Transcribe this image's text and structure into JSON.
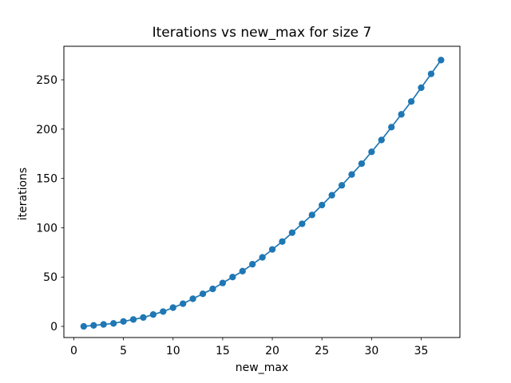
{
  "figure": {
    "background": "#ffffff",
    "axes_color": "#000000"
  },
  "chart_data": {
    "type": "line",
    "title": "Iterations vs new_max for size 7",
    "xlabel": "new_max",
    "ylabel": "iterations",
    "series": [
      {
        "name": "iterations",
        "marker": "circle",
        "color": "#1f77b4",
        "x": [
          1,
          2,
          3,
          4,
          5,
          6,
          7,
          8,
          9,
          10,
          11,
          12,
          13,
          14,
          15,
          16,
          17,
          18,
          19,
          20,
          21,
          22,
          23,
          24,
          25,
          26,
          27,
          28,
          29,
          30,
          31,
          32,
          33,
          34,
          35,
          36,
          37
        ],
        "y": [
          0,
          1,
          2,
          3,
          5,
          7,
          9,
          12,
          15,
          19,
          23,
          28,
          33,
          38,
          44,
          50,
          56,
          63,
          70,
          78,
          86,
          95,
          104,
          113,
          123,
          133,
          143,
          154,
          165,
          177,
          189,
          202,
          215,
          228,
          242,
          256,
          270
        ]
      }
    ],
    "xlim": [
      -1.0,
      38.9
    ],
    "ylim": [
      -11.3,
      284.0
    ],
    "xticks": [
      0,
      5,
      10,
      15,
      20,
      25,
      30,
      35
    ],
    "yticks": [
      0,
      50,
      100,
      150,
      200,
      250
    ],
    "grid": false,
    "legend": "none"
  }
}
